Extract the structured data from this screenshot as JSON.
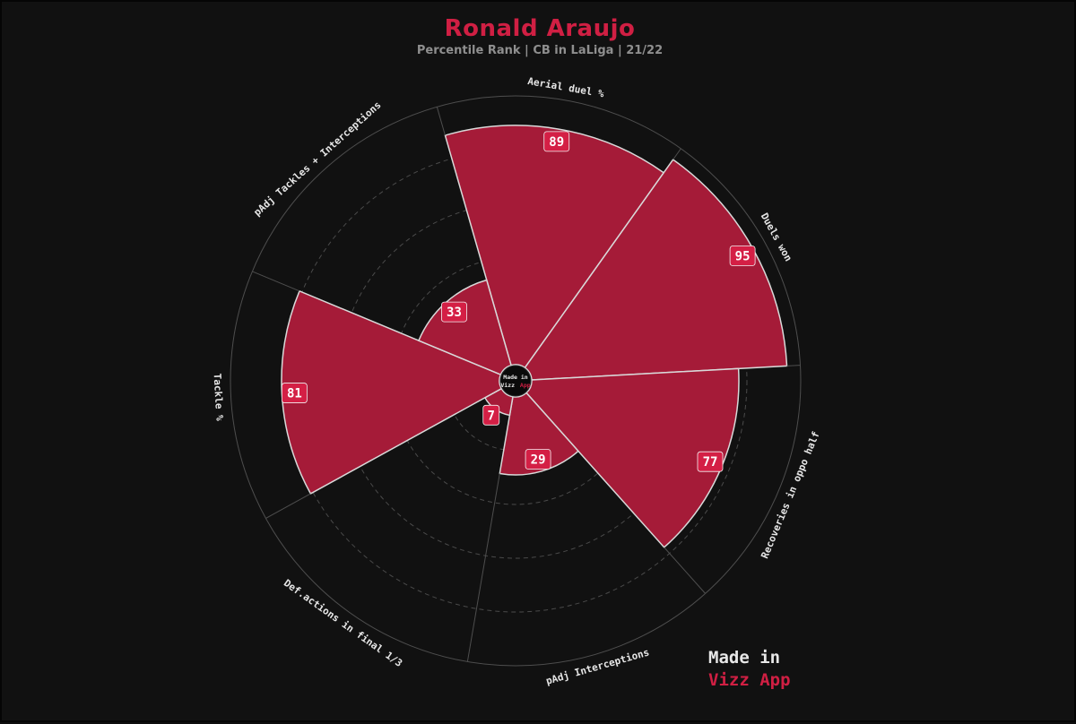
{
  "header": {
    "title": "Ronald Araujo",
    "subtitle": "Percentile Rank | CB in LaLiga | 21/22"
  },
  "colors": {
    "accent": "#a51b38",
    "badge": "#d41f45",
    "title": "#d01f43",
    "background": "#111111"
  },
  "center_logo": {
    "line1": "Made in",
    "line2_a": "Vizz",
    "line2_b": "App"
  },
  "watermark": {
    "line1": "Made in",
    "line2": "Vizz App"
  },
  "chart_data": {
    "type": "polar-bar",
    "ylim": [
      0,
      100
    ],
    "gridlines": [
      20,
      40,
      60,
      80
    ],
    "categories": [
      "Aerial duel %",
      "Duels won",
      "Recoveries in oppo half",
      "pAdj Interceptions",
      "Def.actions in final 1/3",
      "Tackle %",
      "pAdj Tackles + Interceptions"
    ],
    "values": [
      89,
      95,
      77,
      29,
      7,
      81,
      33
    ]
  }
}
